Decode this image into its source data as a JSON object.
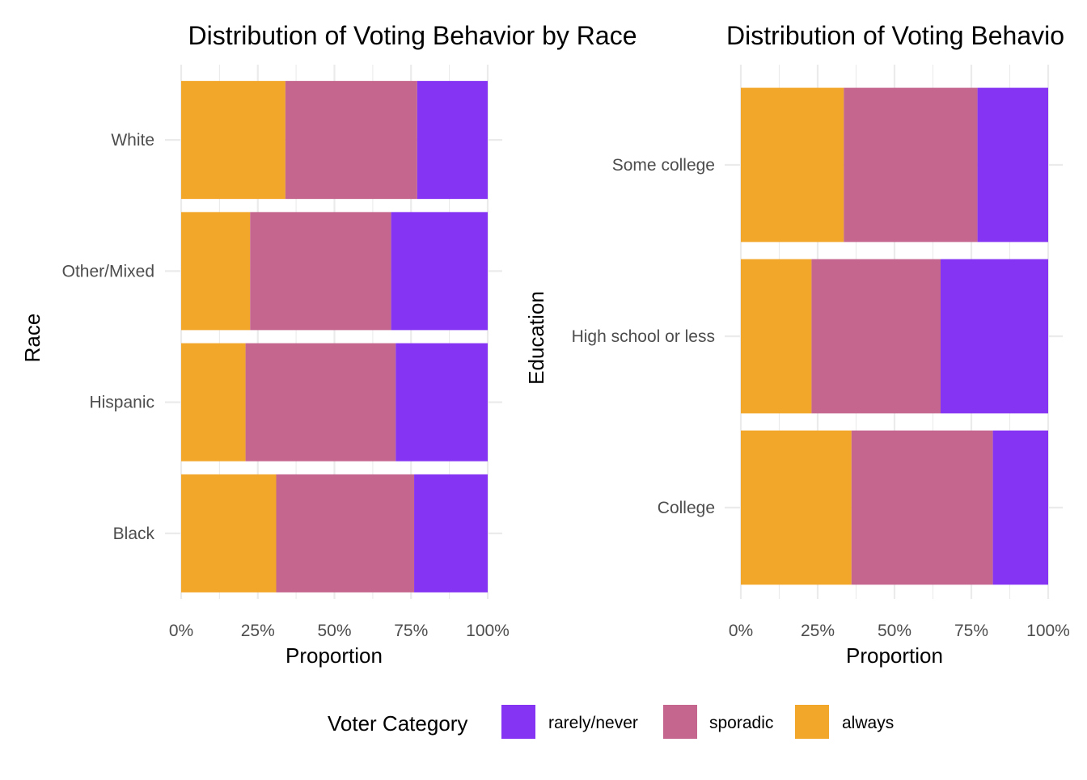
{
  "colors": {
    "always": "#F2A72A",
    "sporadic": "#C4668E",
    "rarely_never": "#8534F4"
  },
  "chart_data": [
    {
      "type": "bar",
      "orientation": "horizontal",
      "stacked": true,
      "title": "Distribution of Voting Behavior by Race",
      "xlabel": "Proportion",
      "ylabel": "Race",
      "xlim": [
        0,
        1
      ],
      "xticks": [
        "0%",
        "25%",
        "50%",
        "75%",
        "100%"
      ],
      "categories": [
        "Black",
        "Hispanic",
        "Other/Mixed",
        "White"
      ],
      "series": [
        {
          "name": "always",
          "color": "#F2A72A",
          "values": [
            0.31,
            0.21,
            0.225,
            0.34
          ]
        },
        {
          "name": "sporadic",
          "color": "#C4668E",
          "values": [
            0.45,
            0.49,
            0.46,
            0.43
          ]
        },
        {
          "name": "rarely/never",
          "color": "#8534F4",
          "values": [
            0.24,
            0.3,
            0.315,
            0.23
          ]
        }
      ],
      "grid": true
    },
    {
      "type": "bar",
      "orientation": "horizontal",
      "stacked": true,
      "title": "Distribution of Voting Behavio",
      "xlabel": "Proportion",
      "ylabel": "Education",
      "xlim": [
        0,
        1
      ],
      "xticks": [
        "0%",
        "25%",
        "50%",
        "75%",
        "100%"
      ],
      "categories": [
        "College",
        "High school or less",
        "Some college"
      ],
      "series": [
        {
          "name": "always",
          "color": "#F2A72A",
          "values": [
            0.36,
            0.23,
            0.335
          ]
        },
        {
          "name": "sporadic",
          "color": "#C4668E",
          "values": [
            0.46,
            0.42,
            0.435
          ]
        },
        {
          "name": "rarely/never",
          "color": "#8534F4",
          "values": [
            0.18,
            0.35,
            0.23
          ]
        }
      ],
      "grid": true
    }
  ],
  "legend": {
    "title": "Voter Category",
    "position": "bottom",
    "items": [
      {
        "label": "rarely/never",
        "color": "#8534F4"
      },
      {
        "label": "sporadic",
        "color": "#C4668E"
      },
      {
        "label": "always",
        "color": "#F2A72A"
      }
    ]
  }
}
